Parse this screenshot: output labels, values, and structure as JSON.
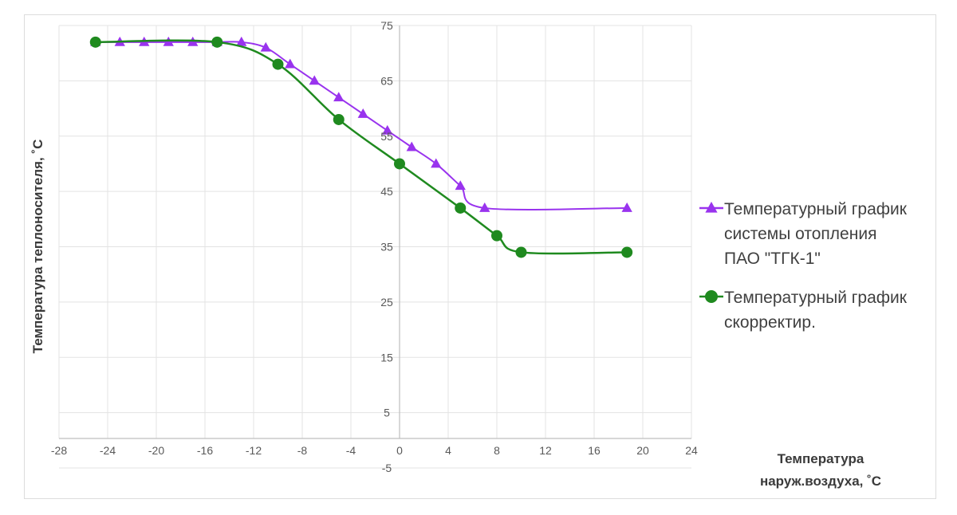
{
  "chart_data": {
    "type": "line",
    "xlabel_lines": [
      "Температура",
      "наруж.воздуха, ˚С"
    ],
    "ylabel": "Температура теплоносителя, ˚С",
    "xlim": [
      -28,
      24
    ],
    "ylim": [
      -5,
      75
    ],
    "x_ticks": [
      -28,
      -24,
      -20,
      -16,
      -12,
      -8,
      -4,
      0,
      4,
      8,
      12,
      16,
      20,
      24
    ],
    "y_ticks": [
      -5,
      5,
      15,
      25,
      35,
      45,
      55,
      65,
      75
    ],
    "grid": true,
    "legend_position": "right",
    "series": [
      {
        "name_lines": [
          "Температурный график",
          "системы отопления",
          "ПАО \"ТГК-1\""
        ],
        "color": "#9933ee",
        "marker": "triangle",
        "x": [
          -25,
          -23,
          -21,
          -19,
          -17,
          -15,
          -13,
          -11,
          -9,
          -7,
          -5,
          -3,
          -1,
          1,
          3,
          5,
          7,
          18.7
        ],
        "y": [
          72,
          72,
          72,
          72,
          72,
          72,
          72,
          71,
          68,
          65,
          62,
          59,
          56,
          53,
          50,
          46,
          42,
          42
        ]
      },
      {
        "name_lines": [
          "Температурный график",
          "скорректир."
        ],
        "color": "#1f8a1f",
        "marker": "circle",
        "x": [
          -25,
          -15,
          -10,
          -5,
          0,
          5,
          8,
          10,
          18.7
        ],
        "y": [
          72,
          72,
          68,
          58,
          50,
          42,
          37,
          34,
          34
        ]
      }
    ]
  }
}
